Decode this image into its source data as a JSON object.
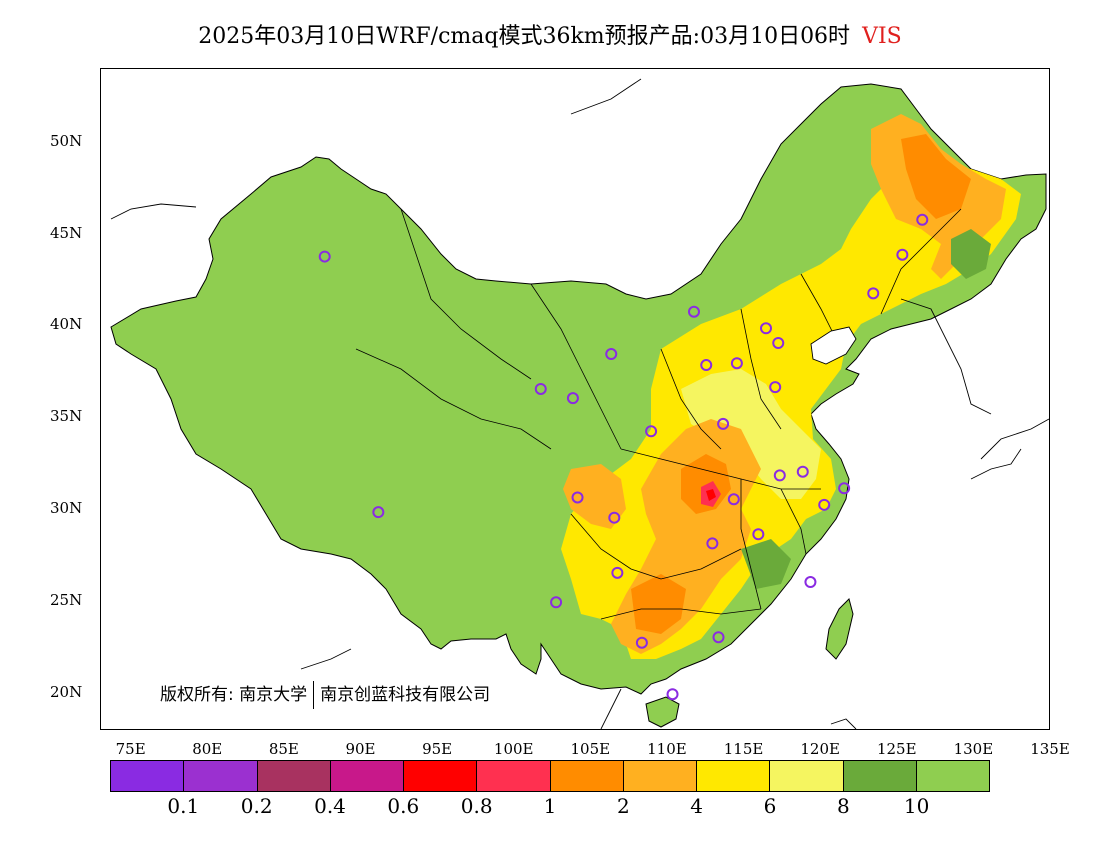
{
  "title": {
    "text": "2025年03月10日WRF/cmaq模式36km预报产品:03月10日06时",
    "variable": "VIS",
    "variable_color": "#e0201e"
  },
  "axes": {
    "lat_labels": [
      "50N",
      "45N",
      "40N",
      "35N",
      "30N",
      "25N",
      "20N"
    ],
    "lat_values": [
      50,
      45,
      40,
      35,
      30,
      25,
      20
    ],
    "lon_labels": [
      "75E",
      "80E",
      "85E",
      "90E",
      "95E",
      "100E",
      "105E",
      "110E",
      "115E",
      "120E",
      "125E",
      "130E",
      "135E"
    ],
    "lon_values": [
      75,
      80,
      85,
      90,
      95,
      100,
      105,
      110,
      115,
      120,
      125,
      130,
      135
    ],
    "lon_range": [
      73,
      135
    ],
    "lat_range": [
      18,
      54
    ]
  },
  "copyright": {
    "prefix": "版权所有: 南京大学",
    "org": "南京创蓝科技有限公司"
  },
  "legend": {
    "colors": [
      "#8a2be2",
      "#9b30d0",
      "#a83260",
      "#c8188a",
      "#ff0000",
      "#ff3050",
      "#ff8c00",
      "#ffb020",
      "#ffe800",
      "#f5f560",
      "#6aaa3a",
      "#8fce50"
    ],
    "labels": [
      "0.1",
      "0.2",
      "0.4",
      "0.6",
      "0.8",
      "1",
      "2",
      "4",
      "6",
      "8",
      "10"
    ]
  },
  "stations": [
    {
      "lon": 87.6,
      "lat": 43.8
    },
    {
      "lon": 91.1,
      "lat": 29.9
    },
    {
      "lon": 101.7,
      "lat": 36.6
    },
    {
      "lon": 103.8,
      "lat": 36.1
    },
    {
      "lon": 106.3,
      "lat": 38.5
    },
    {
      "lon": 111.7,
      "lat": 40.8
    },
    {
      "lon": 116.4,
      "lat": 39.9
    },
    {
      "lon": 117.2,
      "lat": 39.1
    },
    {
      "lon": 112.5,
      "lat": 37.9
    },
    {
      "lon": 114.5,
      "lat": 38.0
    },
    {
      "lon": 117.0,
      "lat": 36.7
    },
    {
      "lon": 113.6,
      "lat": 34.7
    },
    {
      "lon": 108.9,
      "lat": 34.3
    },
    {
      "lon": 104.1,
      "lat": 30.7
    },
    {
      "lon": 106.5,
      "lat": 29.6
    },
    {
      "lon": 114.3,
      "lat": 30.6
    },
    {
      "lon": 112.9,
      "lat": 28.2
    },
    {
      "lon": 115.9,
      "lat": 28.7
    },
    {
      "lon": 117.3,
      "lat": 31.9
    },
    {
      "lon": 118.8,
      "lat": 32.1
    },
    {
      "lon": 120.2,
      "lat": 30.3
    },
    {
      "lon": 121.5,
      "lat": 31.2
    },
    {
      "lon": 119.3,
      "lat": 26.1
    },
    {
      "lon": 113.3,
      "lat": 23.1
    },
    {
      "lon": 108.3,
      "lat": 22.8
    },
    {
      "lon": 106.7,
      "lat": 26.6
    },
    {
      "lon": 102.7,
      "lat": 25.0
    },
    {
      "lon": 110.3,
      "lat": 20.0
    },
    {
      "lon": 123.4,
      "lat": 41.8
    },
    {
      "lon": 125.3,
      "lat": 43.9
    },
    {
      "lon": 126.6,
      "lat": 45.8
    }
  ]
}
